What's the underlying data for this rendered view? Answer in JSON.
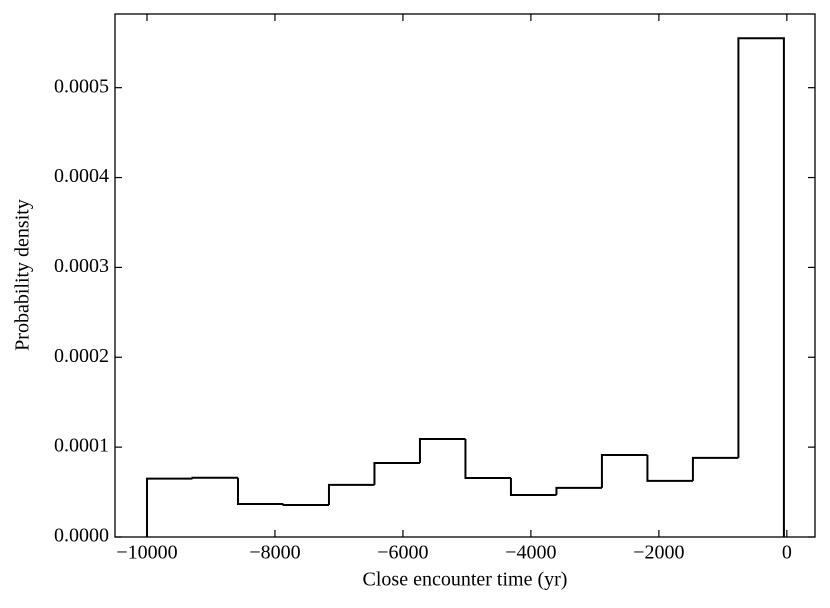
{
  "chart_data": {
    "type": "histogram",
    "xlabel": "Close encounter time (yr)",
    "ylabel": "Probability density",
    "bins": [
      -10000,
      -9289,
      -8578,
      -7867,
      -7156,
      -6445,
      -5734,
      -5023,
      -4312,
      -3601,
      -2890,
      -2179,
      -1468,
      -757,
      -46
    ],
    "counts": [
      6.5e-05,
      6.6e-05,
      3.67e-05,
      3.56e-05,
      5.8e-05,
      8.24e-05,
      0.000109,
      6.57e-05,
      4.68e-05,
      5.46e-05,
      9.13e-05,
      6.24e-05,
      8.8e-05,
      0.000555
    ],
    "color": "#000000",
    "xlim": [
      -10500,
      440
    ],
    "ylim": [
      0,
      0.000582
    ],
    "xticks": [
      {
        "value": -10000,
        "label": "−10000"
      },
      {
        "value": -8000,
        "label": "−8000"
      },
      {
        "value": -6000,
        "label": "−6000"
      },
      {
        "value": -4000,
        "label": "−4000"
      },
      {
        "value": -2000,
        "label": "−2000"
      },
      0
    ],
    "yticks": [
      {
        "value": 0,
        "label": "0.0000"
      },
      {
        "value": 0.0001,
        "label": "0.0001"
      },
      {
        "value": 0.0002,
        "label": "0.0002"
      },
      {
        "value": 0.0003,
        "label": "0.0003"
      },
      {
        "value": 0.0004,
        "label": "0.0004"
      },
      {
        "value": 0.0005,
        "label": "0.0005"
      }
    ]
  }
}
